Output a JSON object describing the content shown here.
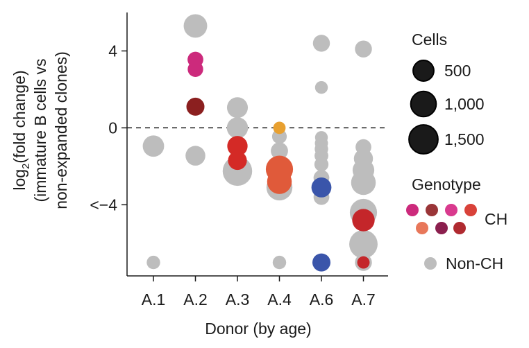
{
  "chart_data": {
    "type": "scatter",
    "title": "",
    "xlabel": "Donor (by age)",
    "ylabel_line1": "log",
    "ylabel_line1_sub": "2",
    "ylabel_line1_rest": "(fold change)",
    "ylabel_line2": "(immature B cells vs",
    "ylabel_line3": "non-expanded clones)",
    "categories": [
      "A.1",
      "A.2",
      "A.3",
      "A.4",
      "A.6",
      "A.7"
    ],
    "y_ticks": [
      {
        "value": 4,
        "label": "4"
      },
      {
        "value": 0,
        "label": "0"
      },
      {
        "value": -4,
        "label": "<−4"
      }
    ],
    "ylim": [
      -7.7,
      6.0
    ],
    "reference_line": 0,
    "points": [
      {
        "donor": "A.1",
        "y": -0.95,
        "cells": 480,
        "genotype": "Non-CH",
        "color": "#bdbdbd"
      },
      {
        "donor": "A.1",
        "y": -7.0,
        "cells": 120,
        "genotype": "Non-CH",
        "color": "#bdbdbd"
      },
      {
        "donor": "A.2",
        "y": 5.3,
        "cells": 620,
        "genotype": "Non-CH",
        "color": "#bdbdbd"
      },
      {
        "donor": "A.2",
        "y": 3.55,
        "cells": 200,
        "genotype": "CH",
        "color": "#cc2a7c"
      },
      {
        "donor": "A.2",
        "y": 3.05,
        "cells": 190,
        "genotype": "CH",
        "color": "#cc2a7c"
      },
      {
        "donor": "A.2",
        "y": 1.1,
        "cells": 300,
        "genotype": "CH",
        "color": "#8b1f1f"
      },
      {
        "donor": "A.2",
        "y": -1.45,
        "cells": 390,
        "genotype": "Non-CH",
        "color": "#bdbdbd"
      },
      {
        "donor": "A.3",
        "y": 1.05,
        "cells": 450,
        "genotype": "Non-CH",
        "color": "#bdbdbd"
      },
      {
        "donor": "A.3",
        "y": 0.0,
        "cells": 470,
        "genotype": "Non-CH",
        "color": "#bdbdbd"
      },
      {
        "donor": "A.3",
        "y": -0.95,
        "cells": 420,
        "genotype": "CH",
        "color": "#d42a26"
      },
      {
        "donor": "A.3",
        "y": -1.7,
        "cells": 340,
        "genotype": "CH",
        "color": "#d42a26"
      },
      {
        "donor": "A.3",
        "y": -2.25,
        "cells": 1100,
        "genotype": "Non-CH",
        "color": "#bdbdbd"
      },
      {
        "donor": "A.4",
        "y": 0.0,
        "cells": 90,
        "genotype": "CH",
        "color": "#e8a030"
      },
      {
        "donor": "A.4",
        "y": -0.45,
        "cells": 160,
        "genotype": "Non-CH",
        "color": "#bdbdbd"
      },
      {
        "donor": "A.4",
        "y": -1.2,
        "cells": 260,
        "genotype": "Non-CH",
        "color": "#bdbdbd"
      },
      {
        "donor": "A.4",
        "y": -3.1,
        "cells": 800,
        "genotype": "Non-CH",
        "color": "#bdbdbd"
      },
      {
        "donor": "A.4",
        "y": -2.15,
        "cells": 900,
        "genotype": "CH",
        "color": "#e05a3a"
      },
      {
        "donor": "A.4",
        "y": -2.8,
        "cells": 700,
        "genotype": "CH",
        "color": "#e05a3a"
      },
      {
        "donor": "A.4",
        "y": -7.0,
        "cells": 120,
        "genotype": "Non-CH",
        "color": "#bdbdbd"
      },
      {
        "donor": "A.6",
        "y": 4.4,
        "cells": 250,
        "genotype": "Non-CH",
        "color": "#bdbdbd"
      },
      {
        "donor": "A.6",
        "y": 2.1,
        "cells": 100,
        "genotype": "Non-CH",
        "color": "#bdbdbd"
      },
      {
        "donor": "A.6",
        "y": -0.5,
        "cells": 100,
        "genotype": "Non-CH",
        "color": "#bdbdbd"
      },
      {
        "donor": "A.6",
        "y": -0.8,
        "cells": 110,
        "genotype": "Non-CH",
        "color": "#bdbdbd"
      },
      {
        "donor": "A.6",
        "y": -1.1,
        "cells": 120,
        "genotype": "Non-CH",
        "color": "#bdbdbd"
      },
      {
        "donor": "A.6",
        "y": -1.45,
        "cells": 130,
        "genotype": "Non-CH",
        "color": "#bdbdbd"
      },
      {
        "donor": "A.6",
        "y": -1.9,
        "cells": 140,
        "genotype": "Non-CH",
        "color": "#bdbdbd"
      },
      {
        "donor": "A.6",
        "y": -2.6,
        "cells": 200,
        "genotype": "Non-CH",
        "color": "#bdbdbd"
      },
      {
        "donor": "A.6",
        "y": -3.6,
        "cells": 200,
        "genotype": "Non-CH",
        "color": "#bdbdbd"
      },
      {
        "donor": "A.6",
        "y": -3.1,
        "cells": 400,
        "genotype": "CH",
        "color": "#3a55aa"
      },
      {
        "donor": "A.6",
        "y": -7.0,
        "cells": 300,
        "genotype": "CH",
        "color": "#3a55aa"
      },
      {
        "donor": "A.7",
        "y": 4.1,
        "cells": 250,
        "genotype": "Non-CH",
        "color": "#bdbdbd"
      },
      {
        "donor": "A.7",
        "y": -1.0,
        "cells": 200,
        "genotype": "Non-CH",
        "color": "#bdbdbd"
      },
      {
        "donor": "A.7",
        "y": -1.6,
        "cells": 350,
        "genotype": "Non-CH",
        "color": "#bdbdbd"
      },
      {
        "donor": "A.7",
        "y": -2.2,
        "cells": 500,
        "genotype": "Non-CH",
        "color": "#bdbdbd"
      },
      {
        "donor": "A.7",
        "y": -2.85,
        "cells": 700,
        "genotype": "Non-CH",
        "color": "#bdbdbd"
      },
      {
        "donor": "A.7",
        "y": -4.4,
        "cells": 900,
        "genotype": "Non-CH",
        "color": "#bdbdbd"
      },
      {
        "donor": "A.7",
        "y": -6.05,
        "cells": 1000,
        "genotype": "Non-CH",
        "color": "#bdbdbd"
      },
      {
        "donor": "A.7",
        "y": -4.8,
        "cells": 550,
        "genotype": "CH",
        "color": "#c4262a"
      },
      {
        "donor": "A.7",
        "y": -7.0,
        "cells": 250,
        "genotype": "Non-CH",
        "color": "#bdbdbd"
      },
      {
        "donor": "A.7",
        "y": -7.0,
        "cells": 90,
        "genotype": "CH",
        "color": "#c4262a"
      }
    ],
    "legend": {
      "size_title": "Cells",
      "sizes": [
        {
          "cells": 500,
          "label": "500"
        },
        {
          "cells": 1000,
          "label": "1,000"
        },
        {
          "cells": 1500,
          "label": "1,500"
        }
      ],
      "genotype_title": "Genotype",
      "ch_label": "CH",
      "ch_colors": [
        "#cc2a7c",
        "#9a3538",
        "#d93a8e",
        "#d9423a",
        "#e8775a",
        "#8b1f4e",
        "#b02a30"
      ],
      "nonch_label": "Non-CH",
      "nonch_color": "#bdbdbd"
    }
  }
}
